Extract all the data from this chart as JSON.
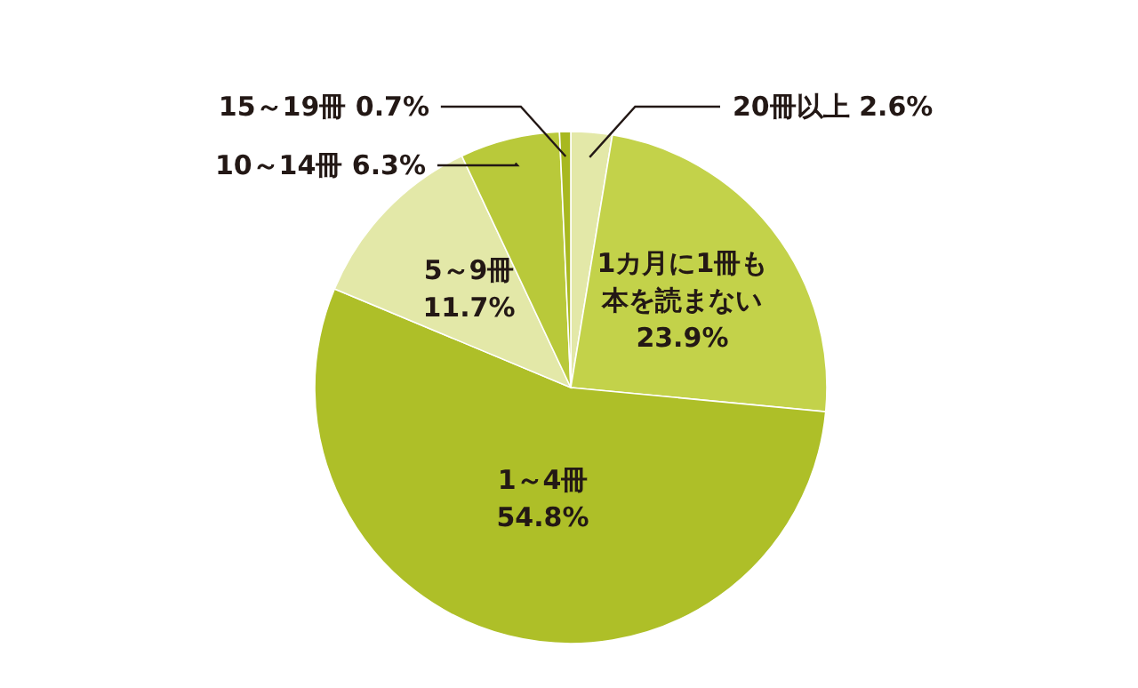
{
  "chart_data": {
    "type": "pie",
    "categories": [
      "20冊以上",
      "1カ月に1冊も本を読まない",
      "1～4冊",
      "5～9冊",
      "10～14冊",
      "15～19冊"
    ],
    "values": [
      2.6,
      23.9,
      54.8,
      11.7,
      6.3,
      0.7
    ],
    "value_labels": [
      "2.6%",
      "23.9%",
      "54.8%",
      "11.7%",
      "6.3%",
      "0.7%"
    ],
    "colors": [
      "#e3e8a8",
      "#c3d24a",
      "#aebf28",
      "#e3e8a8",
      "#b9c93a",
      "#a8b820"
    ]
  }
}
